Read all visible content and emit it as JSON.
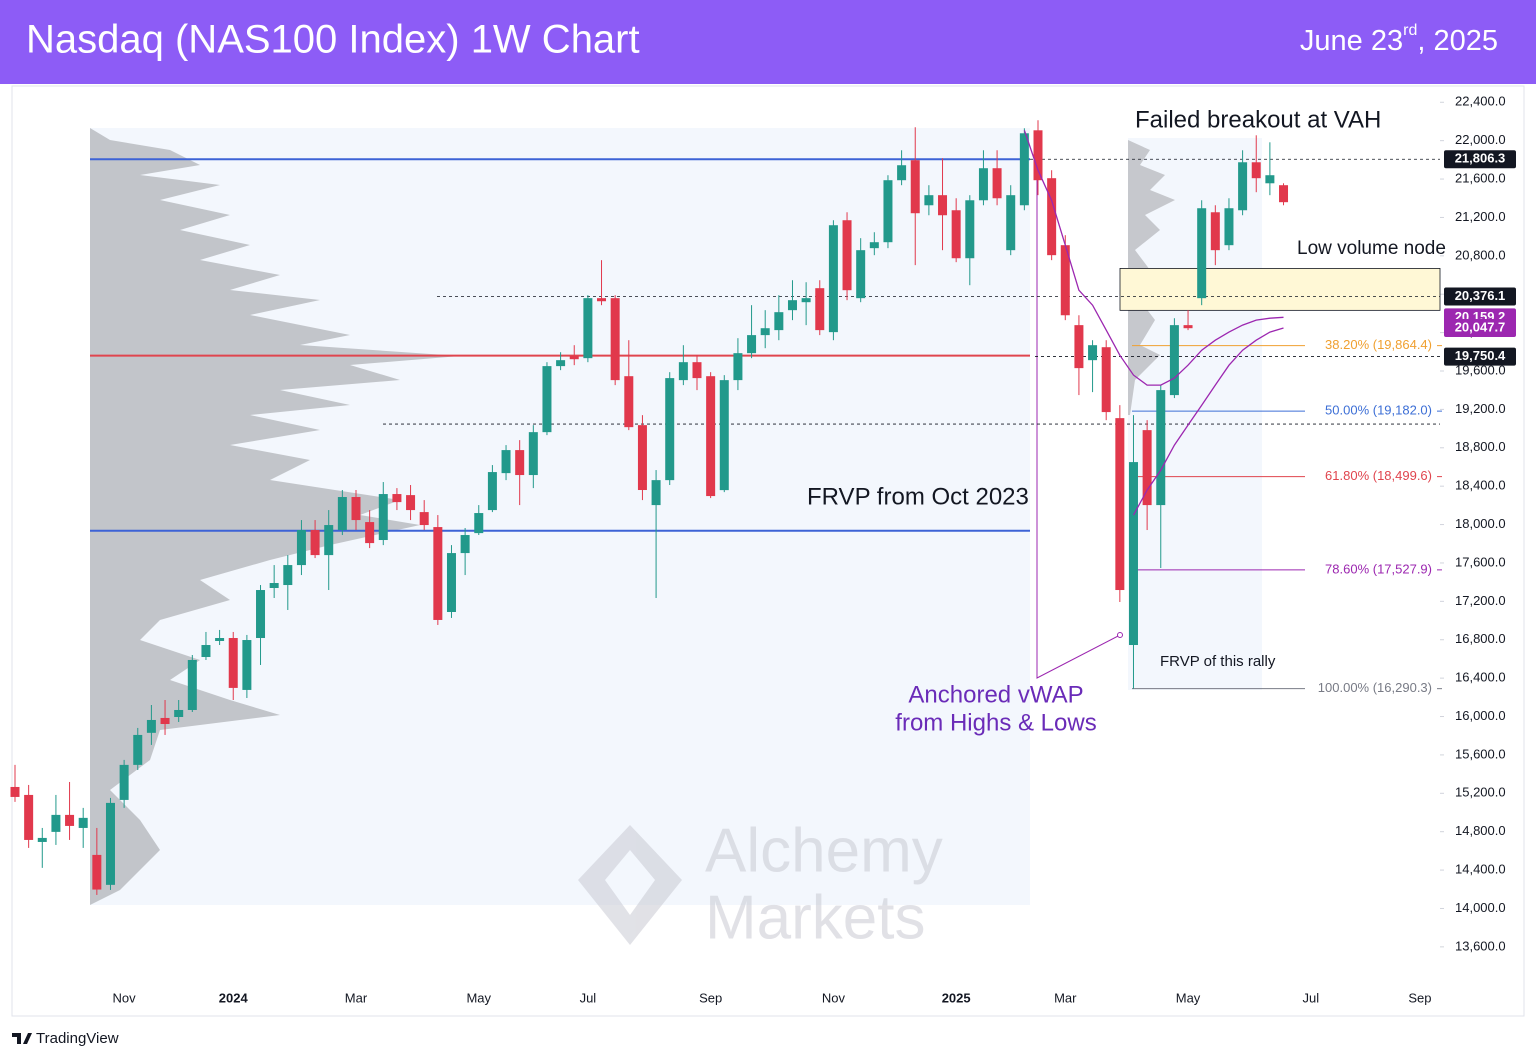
{
  "header": {
    "date_main": "June 23",
    "date_suffix": "rd",
    "date_year": ", 2025"
  },
  "chart_data": {
    "type": "candlestick",
    "title": "Nasdaq (NAS100 Index) 1W Chart",
    "categories": [
      null,
      null,
      null,
      null,
      null,
      null,
      null,
      null,
      "Nov",
      null,
      null,
      null,
      null,
      null,
      null,
      null,
      "2024",
      null,
      null,
      null,
      null,
      null,
      null,
      null,
      null,
      "Mar",
      null,
      null,
      null,
      null,
      null,
      null,
      null,
      null,
      "May",
      null,
      null,
      null,
      null,
      null,
      null,
      null,
      "Jul",
      null,
      null,
      null,
      null,
      null,
      null,
      null,
      null,
      "Sep",
      null,
      null,
      null,
      null,
      null,
      null,
      null,
      null,
      "Nov",
      null,
      null,
      null,
      null,
      null,
      null,
      null,
      null,
      "2025",
      null,
      null,
      null,
      null,
      null,
      null,
      null,
      "Mar",
      null,
      null,
      null,
      null,
      null,
      null,
      null,
      null,
      "May",
      null,
      null,
      null,
      null,
      null,
      null,
      null,
      null,
      "Jul",
      null,
      null,
      null,
      null,
      null,
      null,
      null,
      "Sep"
    ],
    "open": [
      15266,
      15183,
      14693,
      14798,
      14975,
      14839,
      14558,
      14246,
      15131,
      15496,
      15830,
      15985,
      15995,
      16068,
      16620,
      16787,
      16818,
      16277,
      16818,
      17339,
      17370,
      17578,
      17943,
      17682,
      17943,
      18287,
      18026,
      17839,
      18318,
      18307,
      18130,
      17974,
      17089,
      17703,
      17911,
      18151,
      18536,
      18776,
      18516,
      18963,
      19651,
      19755,
      19734,
      20359,
      20359,
      19546,
      19036,
      18203,
      18463,
      19505,
      19692,
      19546,
      18359,
      19505,
      19786,
      19974,
      20026,
      20234,
      20317,
      20463,
      20005,
      21171,
      20359,
      20880,
      20942,
      21588,
      21796,
      21327,
      21432,
      21275,
      20775,
      21379,
      21713,
      20859,
      21327,
      22108,
      21609,
      20911,
      20078,
      19713,
      19848,
      19109,
      16745,
      18984,
      18203,
      19349,
      20078,
      20359,
      21254,
      20911,
      21275,
      21775,
      21556,
      21536,
      null,
      null,
      null,
      null,
      null,
      null,
      null,
      null,
      null,
      null
    ],
    "high": [
      15496,
      15287,
      14839,
      15183,
      15318,
      15048,
      14839,
      15152,
      15548,
      15881,
      16120,
      16172,
      16172,
      16641,
      16881,
      16902,
      16881,
      16850,
      17370,
      17578,
      17682,
      18047,
      18047,
      18151,
      18360,
      18360,
      18151,
      18443,
      18380,
      18412,
      18255,
      18099,
      17786,
      17964,
      18203,
      18620,
      18828,
      18880,
      19036,
      19692,
      19796,
      19869,
      20390,
      20755,
      20390,
      19921,
      19140,
      18568,
      19588,
      19869,
      19765,
      19588,
      19557,
      19942,
      20286,
      20234,
      20390,
      20546,
      20525,
      20546,
      21171,
      21254,
      20984,
      21046,
      21640,
      21900,
      22140,
      21536,
      21817,
      21400,
      21432,
      21900,
      21900,
      21536,
      22129,
      22213,
      21692,
      21015,
      20181,
      19921,
      19921,
      19244,
      19140,
      19088,
      19453,
      20150,
      20234,
      21379,
      21327,
      21400,
      21900,
      22056,
      21983,
      21556,
      null,
      null,
      null,
      null,
      null,
      null,
      null,
      null,
      null,
      null
    ],
    "low": [
      15110,
      14631,
      14423,
      14662,
      14714,
      14631,
      14141,
      14193,
      15048,
      15443,
      15704,
      15808,
      15943,
      16047,
      16589,
      16745,
      16172,
      16193,
      16537,
      17235,
      17110,
      17474,
      17651,
      17318,
      17891,
      17943,
      17755,
      17786,
      18151,
      18047,
      17943,
      16954,
      17027,
      17474,
      17891,
      18130,
      18463,
      18203,
      18380,
      18932,
      19609,
      19661,
      19692,
      20286,
      19453,
      18984,
      18255,
      17235,
      18412,
      19453,
      19401,
      18276,
      18338,
      19401,
      19734,
      19838,
      19921,
      20130,
      20078,
      19974,
      19921,
      20338,
      20317,
      20807,
      20880,
      21536,
      20703,
      21223,
      20859,
      20734,
      20494,
      21327,
      21327,
      20807,
      21275,
      21432,
      20755,
      20130,
      19349,
      19380,
      19088,
      17193,
      16290,
      17943,
      17547,
      19318,
      20026,
      20286,
      20703,
      20859,
      21223,
      21463,
      21432,
      21327,
      null,
      null,
      null,
      null,
      null,
      null,
      null,
      null,
      null,
      null
    ],
    "close": [
      15162,
      14714,
      14735,
      14975,
      14860,
      14944,
      14197,
      15100,
      15496,
      15808,
      15964,
      15922,
      16068,
      16589,
      16745,
      16818,
      16298,
      16797,
      17318,
      17391,
      17578,
      17943,
      17682,
      17995,
      18287,
      18047,
      17807,
      18318,
      18234,
      18151,
      17995,
      17006,
      17703,
      17891,
      18120,
      18547,
      18776,
      18516,
      18963,
      19651,
      19713,
      19723,
      20359,
      20327,
      19505,
      19015,
      18360,
      18463,
      19526,
      19692,
      19526,
      18297,
      19505,
      19786,
      19974,
      20046,
      20213,
      20338,
      20359,
      20026,
      21119,
      20442,
      20859,
      20942,
      21588,
      21744,
      21244,
      21432,
      21223,
      20775,
      21379,
      21713,
      21400,
      21432,
      22077,
      21588,
      20807,
      20181,
      19630,
      19869,
      19172,
      17318,
      18651,
      18203,
      19401,
      20078,
      20046,
      21296,
      20859,
      21296,
      21775,
      21609,
      21640,
      21359,
      null,
      null,
      null,
      null,
      null,
      null,
      null,
      null,
      null,
      null
    ],
    "up_color": "#22998b",
    "down_color": "#e1384c",
    "vwap_lines": [
      {
        "color": "#9c27b0",
        "values": [
          null,
          null,
          null,
          null,
          null,
          null,
          null,
          null,
          null,
          null,
          null,
          null,
          null,
          null,
          null,
          null,
          null,
          null,
          null,
          null,
          null,
          null,
          null,
          null,
          null,
          null,
          null,
          null,
          null,
          null,
          null,
          null,
          null,
          null,
          null,
          null,
          null,
          null,
          null,
          null,
          null,
          null,
          null,
          null,
          null,
          null,
          null,
          null,
          null,
          null,
          null,
          null,
          null,
          null,
          null,
          null,
          null,
          null,
          null,
          null,
          null,
          null,
          null,
          null,
          null,
          null,
          null,
          null,
          null,
          null,
          null,
          null,
          null,
          null,
          22108,
          21692,
          21379,
          20911,
          20442,
          20286,
          20026,
          19765,
          19557,
          19453,
          19453,
          19526,
          19661,
          19817,
          19921,
          20005,
          20078,
          20130,
          20150,
          20159.2,
          null,
          null,
          null,
          null,
          null,
          null,
          null,
          null,
          null,
          null
        ]
      },
      {
        "color": "#9c27b0",
        "values": [
          null,
          null,
          null,
          null,
          null,
          null,
          null,
          null,
          null,
          null,
          null,
          null,
          null,
          null,
          null,
          null,
          null,
          null,
          null,
          null,
          null,
          null,
          null,
          null,
          null,
          null,
          null,
          null,
          null,
          null,
          null,
          null,
          null,
          null,
          null,
          null,
          null,
          null,
          null,
          null,
          null,
          null,
          null,
          null,
          null,
          null,
          null,
          null,
          null,
          null,
          null,
          null,
          null,
          null,
          null,
          null,
          null,
          null,
          null,
          null,
          null,
          null,
          null,
          null,
          null,
          null,
          null,
          null,
          null,
          null,
          null,
          null,
          null,
          null,
          null,
          null,
          null,
          null,
          null,
          null,
          null,
          null,
          18099,
          18359,
          18568,
          18828,
          19036,
          19244,
          19453,
          19661,
          19817,
          19921,
          20005,
          20047.7,
          null,
          null,
          null,
          null,
          null,
          null,
          null,
          null,
          null,
          null
        ]
      }
    ],
    "profile_lines": [
      {
        "value": 21806.3,
        "color": "#3d63d6"
      },
      {
        "value": 19760,
        "color": "#e0454e"
      },
      {
        "value": 17935,
        "color": "#3d63d6"
      }
    ],
    "dashed_levels": [
      19047
    ],
    "zone": {
      "range": [
        20232,
        20669
      ],
      "color": "#fff8d6"
    },
    "fib_levels": [
      {
        "value": 19864.4,
        "label": "38.20% (19,864.4)",
        "color": "#f0a030"
      },
      {
        "value": 19182.0,
        "label": "50.00% (19,182.0)",
        "color": "#3d6fd6"
      },
      {
        "value": 18499.6,
        "label": "61.80% (18,499.6)",
        "color": "#e0454e"
      },
      {
        "value": 17527.9,
        "label": "78.60% (17,527.9)",
        "color": "#9c27b0"
      },
      {
        "value": 16290.3,
        "label": "100.00% (16,290.3)",
        "color": "#787b86"
      }
    ],
    "price_labels": [
      {
        "value": 21806.3,
        "label": "21,806.3",
        "color": "#131722",
        "dashed": true
      },
      {
        "value": 20376.1,
        "label": "20,376.1",
        "color": "#131722",
        "dashed": true
      },
      {
        "value": 20159.2,
        "label": "20,159.2",
        "color": "#9c27b0",
        "dashed": false
      },
      {
        "value": 20047.7,
        "label": "20,047.7",
        "color": "#9c27b0",
        "dashed": false
      },
      {
        "value": 19750.4,
        "label": "19,750.4",
        "color": "#131722",
        "dashed": true
      }
    ],
    "annotations": [
      "Failed breakout at VAH",
      "Low volume node",
      "FRVP from Oct 2023",
      "Anchored vWAP",
      "from Highs & Lows",
      "FRVP of this rally"
    ],
    "watermark": [
      "Alchemy",
      "Markets"
    ],
    "footer": "TradingView",
    "ylim": [
      12890,
      22580
    ],
    "yticks": [
      {
        "value": 13600,
        "label": "13,600.0"
      },
      {
        "value": 14000,
        "label": "14,000.0"
      },
      {
        "value": 14400,
        "label": "14,400.0"
      },
      {
        "value": 14800,
        "label": "14,800.0"
      },
      {
        "value": 15200,
        "label": "15,200.0"
      },
      {
        "value": 15600,
        "label": "15,600.0"
      },
      {
        "value": 16000,
        "label": "16,000.0"
      },
      {
        "value": 16400,
        "label": "16,400.0"
      },
      {
        "value": 16800,
        "label": "16,800.0"
      },
      {
        "value": 17200,
        "label": "17,200.0"
      },
      {
        "value": 17600,
        "label": "17,600.0"
      },
      {
        "value": 18000,
        "label": "18,000.0"
      },
      {
        "value": 18400,
        "label": "18,400.0"
      },
      {
        "value": 18800,
        "label": "18,800.0"
      },
      {
        "value": 19200,
        "label": "19,200.0"
      },
      {
        "value": 19600,
        "label": "19,600.0"
      },
      {
        "value": 20000,
        "label": "20,000.0"
      },
      {
        "value": 20400,
        "label": "20,400.0"
      },
      {
        "value": 20800,
        "label": "20,800.0"
      },
      {
        "value": 21200,
        "label": "21,200.0"
      },
      {
        "value": 21600,
        "label": "21,600.0"
      },
      {
        "value": 22000,
        "label": "22,000.0"
      },
      {
        "value": 22400,
        "label": "22,400.0"
      }
    ],
    "grid": false
  }
}
